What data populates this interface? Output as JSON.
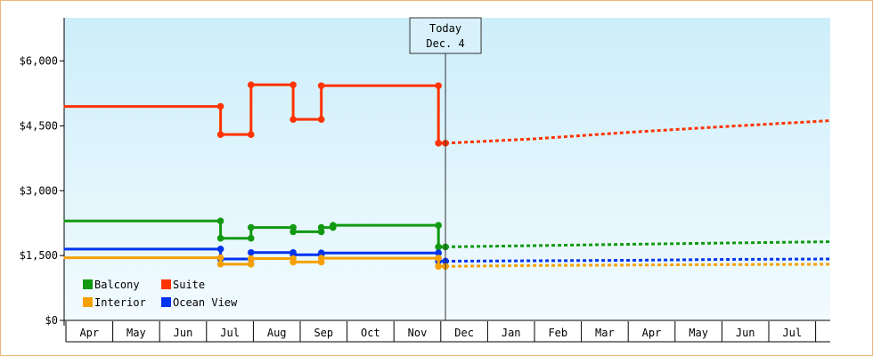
{
  "chart_data": {
    "type": "line",
    "title": "",
    "xlabel": "",
    "ylabel": "",
    "ylim": [
      0,
      7000
    ],
    "yticks": [
      0,
      1500,
      3000,
      4500,
      6000
    ],
    "ytick_labels": [
      "$0",
      "$1,500",
      "$3,000",
      "$4,500",
      "$6,000"
    ],
    "months": [
      "Apr",
      "May",
      "Jun",
      "Jul",
      "Aug",
      "Sep",
      "Oct",
      "Nov",
      "Dec",
      "Jan",
      "Feb",
      "Mar",
      "Apr",
      "May",
      "Jun",
      "Jul"
    ],
    "month_starts": [
      0,
      1,
      2,
      3,
      4,
      5,
      6,
      7,
      8,
      9,
      10,
      11,
      12,
      13,
      14,
      15
    ],
    "x_max": 16.3,
    "today": {
      "x": 8.1,
      "line1": "Today",
      "line2": "Dec. 4"
    },
    "series": [
      {
        "name": "Suite",
        "color": "#ff3300",
        "points": [
          [
            -0.05,
            4950
          ],
          [
            3.3,
            4950
          ],
          [
            3.3,
            4300
          ],
          [
            3.95,
            4300
          ],
          [
            3.95,
            5450
          ],
          [
            4.85,
            5450
          ],
          [
            4.85,
            4650
          ],
          [
            5.45,
            4650
          ],
          [
            5.45,
            5430
          ],
          [
            7.95,
            5430
          ],
          [
            7.95,
            4100
          ],
          [
            8.1,
            4100
          ]
        ],
        "markers": [
          3.3,
          3.3,
          3.95,
          3.95,
          4.85,
          4.85,
          5.45,
          5.45,
          7.95,
          7.95,
          8.1
        ],
        "forecast": [
          [
            8.1,
            4100
          ],
          [
            10,
            4200
          ],
          [
            12,
            4350
          ],
          [
            14,
            4480
          ],
          [
            16.3,
            4620
          ]
        ]
      },
      {
        "name": "Balcony",
        "color": "#119911",
        "points": [
          [
            -0.05,
            2300
          ],
          [
            3.3,
            2300
          ],
          [
            3.3,
            1900
          ],
          [
            3.95,
            1900
          ],
          [
            3.95,
            2150
          ],
          [
            4.85,
            2150
          ],
          [
            4.85,
            2050
          ],
          [
            5.45,
            2050
          ],
          [
            5.45,
            2150
          ],
          [
            5.7,
            2150
          ],
          [
            5.7,
            2200
          ],
          [
            7.95,
            2200
          ],
          [
            7.95,
            1700
          ],
          [
            8.1,
            1700
          ]
        ],
        "forecast": [
          [
            8.1,
            1700
          ],
          [
            10,
            1730
          ],
          [
            12,
            1760
          ],
          [
            14,
            1790
          ],
          [
            16.3,
            1820
          ]
        ]
      },
      {
        "name": "Ocean View",
        "color": "#0033ee",
        "points": [
          [
            -0.05,
            1650
          ],
          [
            3.3,
            1650
          ],
          [
            3.3,
            1420
          ],
          [
            3.95,
            1420
          ],
          [
            3.95,
            1570
          ],
          [
            4.85,
            1570
          ],
          [
            4.85,
            1520
          ],
          [
            5.45,
            1520
          ],
          [
            5.45,
            1560
          ],
          [
            7.95,
            1560
          ],
          [
            7.95,
            1370
          ],
          [
            8.1,
            1370
          ]
        ],
        "forecast": [
          [
            8.1,
            1370
          ],
          [
            10,
            1380
          ],
          [
            12,
            1390
          ],
          [
            14,
            1410
          ],
          [
            16.3,
            1420
          ]
        ]
      },
      {
        "name": "Interior",
        "color": "#f5a000",
        "points": [
          [
            -0.05,
            1450
          ],
          [
            3.3,
            1450
          ],
          [
            3.3,
            1300
          ],
          [
            3.95,
            1300
          ],
          [
            3.95,
            1430
          ],
          [
            4.85,
            1430
          ],
          [
            4.85,
            1350
          ],
          [
            5.45,
            1350
          ],
          [
            5.45,
            1440
          ],
          [
            7.95,
            1440
          ],
          [
            7.95,
            1250
          ],
          [
            8.1,
            1250
          ]
        ],
        "forecast": [
          [
            8.1,
            1250
          ],
          [
            10,
            1270
          ],
          [
            12,
            1280
          ],
          [
            14,
            1290
          ],
          [
            16.3,
            1300
          ]
        ]
      }
    ],
    "legend": {
      "position": "bottom-left",
      "entries": [
        {
          "label": "Balcony",
          "color": "#119911"
        },
        {
          "label": "Suite",
          "color": "#ff3300"
        },
        {
          "label": "Interior",
          "color": "#f5a000"
        },
        {
          "label": "Ocean View",
          "color": "#0033ee"
        }
      ]
    }
  }
}
